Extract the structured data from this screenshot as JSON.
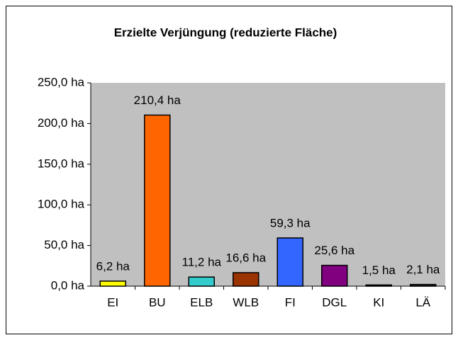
{
  "chart_data": {
    "type": "bar",
    "title": "Erzielte Verjüngung (reduzierte Fläche)",
    "categories": [
      "EI",
      "BU",
      "ELB",
      "WLB",
      "FI",
      "DGL",
      "KI",
      "LÄ"
    ],
    "values": [
      6.2,
      210.4,
      11.2,
      16.6,
      59.3,
      25.6,
      1.5,
      2.1
    ],
    "value_labels": [
      "6,2 ha",
      "210,4 ha",
      "11,2 ha",
      "16,6 ha",
      "59,3 ha",
      "25,6 ha",
      "1,5 ha",
      "2,1 ha"
    ],
    "colors": [
      "#ffff00",
      "#ff6600",
      "#33cccc",
      "#993300",
      "#3366ff",
      "#800080",
      "#000000",
      "#1a1a1a"
    ],
    "ylim": [
      0,
      250
    ],
    "yticks": [
      {
        "value": 0,
        "label": "0,0 ha"
      },
      {
        "value": 50,
        "label": "50,0 ha"
      },
      {
        "value": 100,
        "label": "100,0 ha"
      },
      {
        "value": 150,
        "label": "150,0 ha"
      },
      {
        "value": 200,
        "label": "200,0 ha"
      },
      {
        "value": 250,
        "label": "250,0 ha"
      }
    ],
    "grid": false
  }
}
